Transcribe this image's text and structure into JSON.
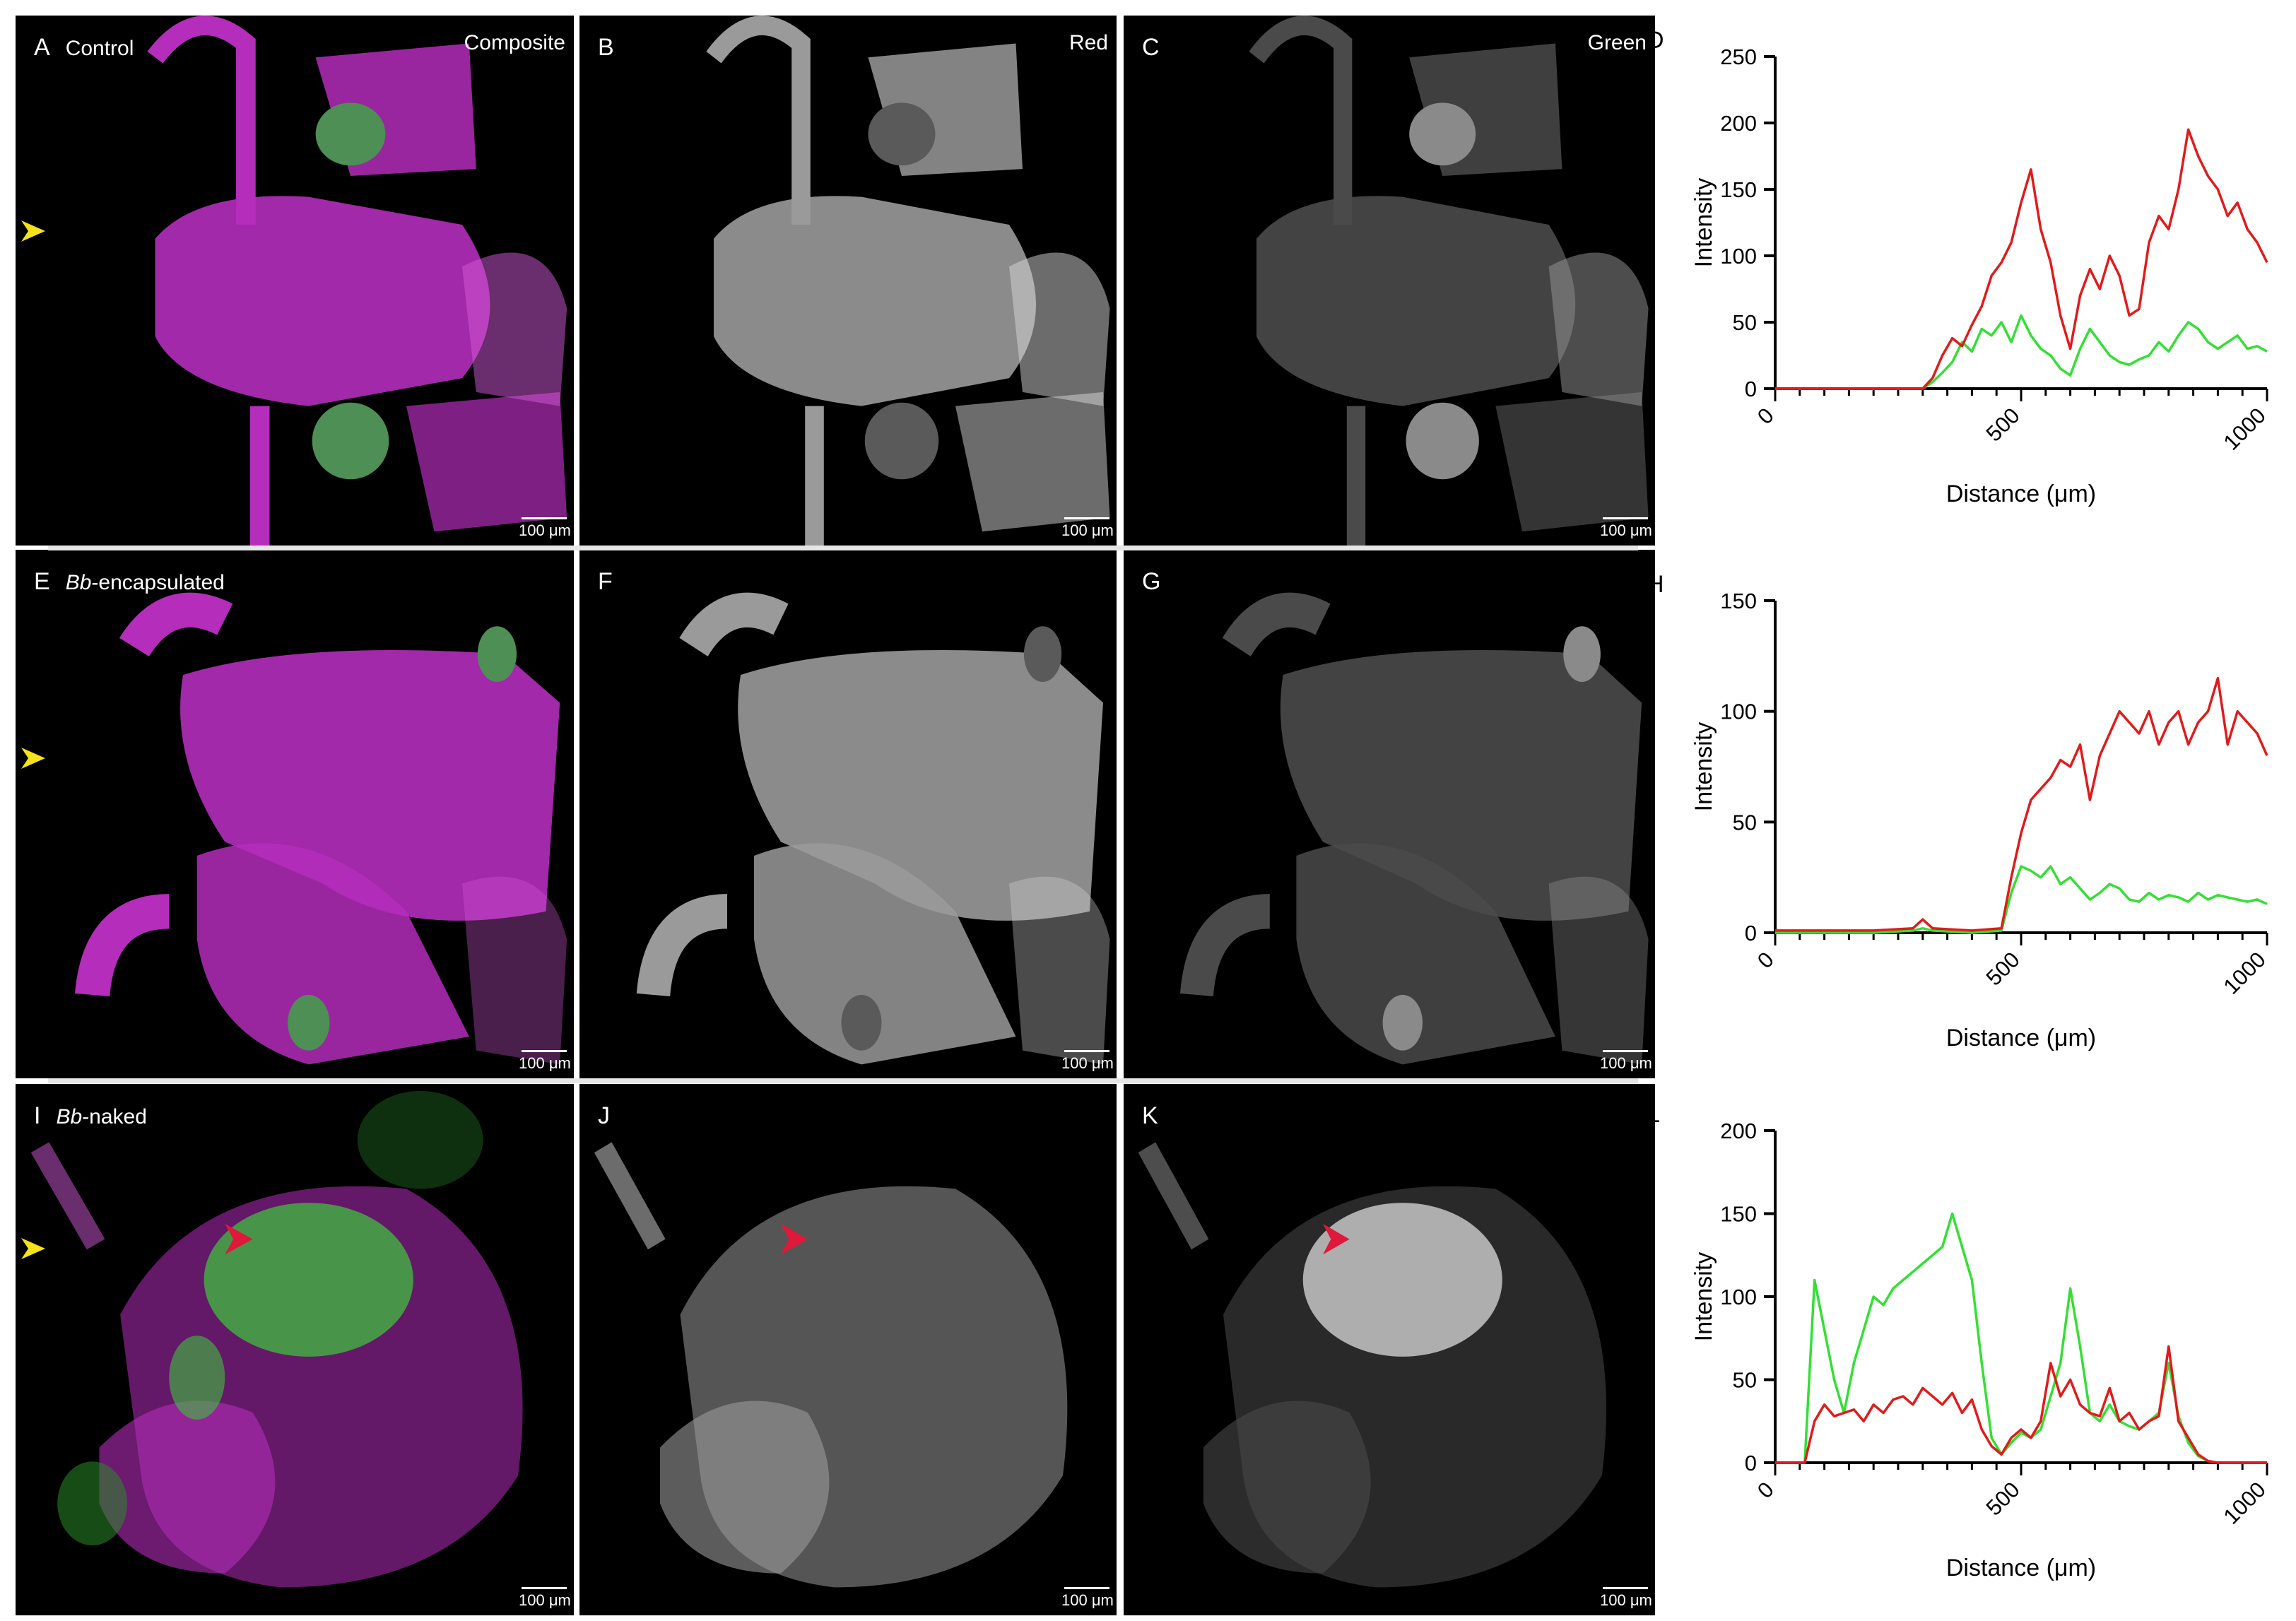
{
  "figure": {
    "rows": [
      {
        "condition_prefix": "",
        "condition_label": "Control",
        "panels": [
          {
            "letter": "A",
            "channel": "Composite",
            "scale": "100 μm",
            "style": "composite"
          },
          {
            "letter": "B",
            "channel": "Red",
            "scale": "100 μm",
            "style": "red"
          },
          {
            "letter": "C",
            "channel": "Green",
            "scale": "100 μm",
            "style": "green"
          }
        ]
      },
      {
        "condition_prefix": "Bb",
        "condition_label": "-encapsulated",
        "panels": [
          {
            "letter": "E",
            "channel": "",
            "scale": "100 μm",
            "style": "composite"
          },
          {
            "letter": "F",
            "channel": "",
            "scale": "100 μm",
            "style": "red"
          },
          {
            "letter": "G",
            "channel": "",
            "scale": "100 μm",
            "style": "green"
          }
        ]
      },
      {
        "condition_prefix": "Bb",
        "condition_label": "-naked",
        "panels": [
          {
            "letter": "I",
            "channel": "",
            "scale": "100 μm",
            "style": "composite-naked"
          },
          {
            "letter": "J",
            "channel": "",
            "scale": "100 μm",
            "style": "red-naked"
          },
          {
            "letter": "K",
            "channel": "",
            "scale": "100 μm",
            "style": "green-naked"
          }
        ]
      }
    ],
    "colors": {
      "red_series": "#e11b1b",
      "green_series": "#33e033",
      "magenta": "#b42dbb",
      "arrow_yellow": "#f5e21a",
      "arrow_red": "#e0183a"
    }
  },
  "chart_data": [
    {
      "panel": "D",
      "type": "line",
      "xlabel": "Distance (μm)",
      "ylabel": "Intensity",
      "xlim": [
        0,
        1000
      ],
      "ylim": [
        0,
        250
      ],
      "xticks": [
        "0",
        "500",
        "1000"
      ],
      "yticks": [
        "0",
        "50",
        "100",
        "150",
        "200",
        "250"
      ],
      "x": [
        0,
        100,
        200,
        300,
        320,
        340,
        360,
        380,
        400,
        420,
        440,
        460,
        480,
        500,
        520,
        540,
        560,
        580,
        600,
        620,
        640,
        660,
        680,
        700,
        720,
        740,
        760,
        780,
        800,
        820,
        840,
        860,
        880,
        900,
        920,
        940,
        960,
        980,
        1000
      ],
      "series": [
        {
          "name": "red",
          "values": [
            0,
            0,
            0,
            0,
            8,
            25,
            38,
            32,
            48,
            62,
            85,
            95,
            110,
            140,
            165,
            120,
            95,
            55,
            30,
            70,
            90,
            75,
            100,
            85,
            55,
            60,
            110,
            130,
            120,
            150,
            195,
            175,
            160,
            150,
            130,
            140,
            120,
            110,
            95
          ]
        },
        {
          "name": "green",
          "values": [
            0,
            0,
            0,
            0,
            5,
            12,
            20,
            35,
            28,
            45,
            40,
            50,
            35,
            55,
            40,
            30,
            25,
            15,
            10,
            30,
            45,
            35,
            25,
            20,
            18,
            22,
            25,
            35,
            28,
            40,
            50,
            45,
            35,
            30,
            35,
            40,
            30,
            32,
            28
          ]
        }
      ]
    },
    {
      "panel": "H",
      "type": "line",
      "xlabel": "Distance (μm)",
      "ylabel": "Intensity",
      "xlim": [
        0,
        1000
      ],
      "ylim": [
        0,
        150
      ],
      "xticks": [
        "0",
        "500",
        "1000"
      ],
      "yticks": [
        "0",
        "50",
        "100",
        "150"
      ],
      "x": [
        0,
        100,
        200,
        280,
        300,
        320,
        400,
        460,
        480,
        500,
        520,
        540,
        560,
        580,
        600,
        620,
        640,
        660,
        680,
        700,
        720,
        740,
        760,
        780,
        800,
        820,
        840,
        860,
        880,
        900,
        920,
        940,
        960,
        980,
        1000
      ],
      "series": [
        {
          "name": "red",
          "values": [
            1,
            1,
            1,
            2,
            6,
            2,
            1,
            2,
            25,
            45,
            60,
            65,
            70,
            78,
            75,
            85,
            60,
            80,
            90,
            100,
            95,
            90,
            100,
            85,
            95,
            100,
            85,
            95,
            100,
            115,
            85,
            100,
            95,
            90,
            80
          ]
        },
        {
          "name": "green",
          "values": [
            0,
            0,
            0,
            1,
            2,
            1,
            0,
            1,
            18,
            30,
            28,
            25,
            30,
            22,
            25,
            20,
            15,
            18,
            22,
            20,
            15,
            14,
            18,
            15,
            17,
            16,
            14,
            18,
            15,
            17,
            16,
            15,
            14,
            15,
            13
          ]
        }
      ]
    },
    {
      "panel": "L",
      "type": "line",
      "xlabel": "Distance (μm)",
      "ylabel": "Intensity",
      "xlim": [
        0,
        1000
      ],
      "ylim": [
        0,
        200
      ],
      "xticks": [
        "0",
        "500",
        "1000"
      ],
      "yticks": [
        "0",
        "50",
        "100",
        "150",
        "200"
      ],
      "x": [
        0,
        60,
        80,
        100,
        120,
        140,
        160,
        180,
        200,
        220,
        240,
        260,
        280,
        300,
        320,
        340,
        360,
        380,
        400,
        420,
        440,
        460,
        480,
        500,
        520,
        540,
        560,
        580,
        600,
        620,
        640,
        660,
        680,
        700,
        720,
        740,
        760,
        780,
        800,
        820,
        840,
        860,
        880,
        900,
        1000
      ],
      "series": [
        {
          "name": "red",
          "values": [
            0,
            0,
            25,
            35,
            28,
            30,
            32,
            25,
            35,
            30,
            38,
            40,
            35,
            45,
            40,
            35,
            42,
            30,
            38,
            20,
            10,
            5,
            15,
            20,
            15,
            25,
            60,
            40,
            50,
            35,
            30,
            28,
            45,
            25,
            30,
            20,
            25,
            28,
            70,
            25,
            15,
            5,
            1,
            0,
            0
          ]
        },
        {
          "name": "green",
          "values": [
            0,
            0,
            110,
            80,
            50,
            30,
            60,
            80,
            100,
            95,
            105,
            110,
            115,
            120,
            125,
            130,
            150,
            130,
            110,
            60,
            15,
            5,
            12,
            18,
            15,
            20,
            40,
            60,
            105,
            70,
            30,
            25,
            35,
            25,
            22,
            20,
            25,
            30,
            60,
            28,
            12,
            4,
            1,
            0,
            0
          ]
        }
      ]
    }
  ],
  "chart_letters": [
    "D",
    "H",
    "L"
  ]
}
